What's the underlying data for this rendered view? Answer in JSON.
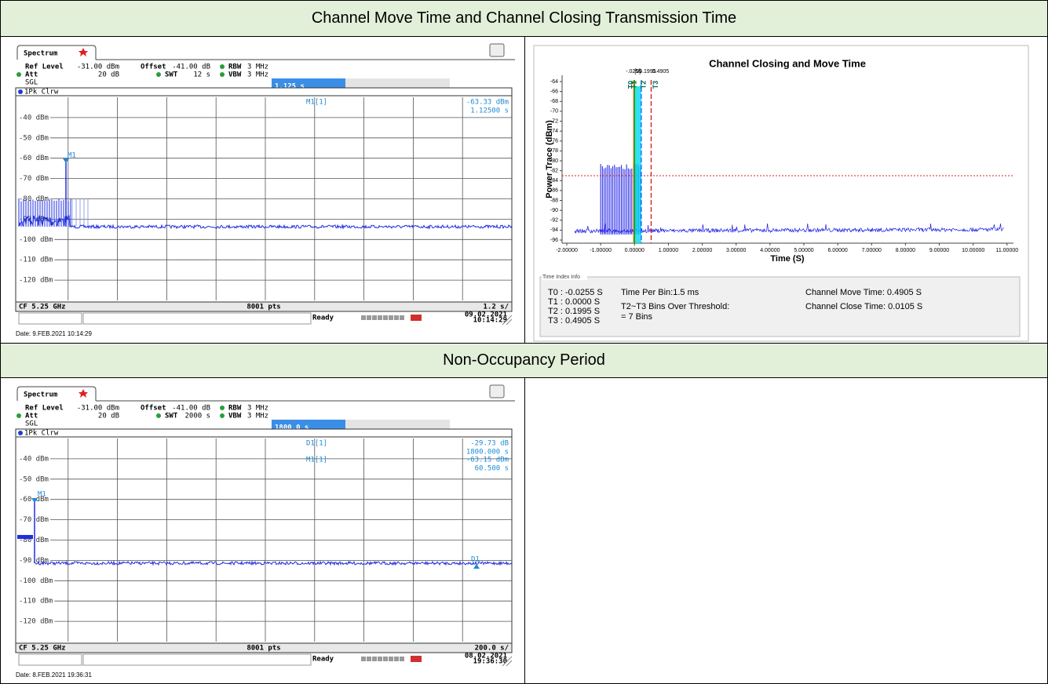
{
  "sections": [
    {
      "title": "Channel Move Time and Channel Closing Transmission Time"
    },
    {
      "title": "Non-Occupancy Period"
    }
  ],
  "analyzer1": {
    "tab": "Spectrum",
    "settings": [
      [
        "Ref Level",
        "-31.00 dBm",
        "Offset",
        "-41.00 dB",
        "RBW",
        "3 MHz"
      ],
      [
        "Att",
        "20 dB",
        "SWT",
        "12 s",
        "VBW",
        "3 MHz"
      ]
    ],
    "mode": "SGL",
    "marker_readout": "1.125 s",
    "trace": "1Pk Clrw",
    "markers": [
      {
        "name": "M1[1]",
        "value": "-63.33 dBm",
        "position": "1.12500 s"
      }
    ],
    "marker_tags": [
      "M1"
    ],
    "y_labels": [
      "-40 dBm",
      "-50 dBm",
      "-60 dBm",
      "-70 dBm",
      "-80 dBm",
      "-90 dBm",
      "-100 dBm",
      "-110 dBm",
      "-120 dBm"
    ],
    "footer": {
      "center": "CF 5.25 GHz",
      "points": "8001 pts",
      "span": "1.2 s/"
    },
    "status": {
      "state": "Ready",
      "date": "09.02.2021",
      "time": "10:14:29"
    },
    "caption": "Date: 9.FEB.2021 10:14:29"
  },
  "analyzer2": {
    "tab": "Spectrum",
    "settings": [
      [
        "Ref Level",
        "-31.00 dBm",
        "Offset",
        "-41.00 dB",
        "RBW",
        "3 MHz"
      ],
      [
        "Att",
        "20 dB",
        "SWT",
        "2000 s",
        "VBW",
        "3 MHz"
      ]
    ],
    "mode": "SGL",
    "marker_readout": "1800.0 s",
    "trace": "1Pk Clrw",
    "markers": [
      {
        "name": "D1[1]",
        "value": "-29.73 dB",
        "position": "1800.000 s"
      },
      {
        "name": "M1[1]",
        "value": "-63.15 dBm",
        "position": "60.500 s"
      }
    ],
    "marker_tags": [
      "M1",
      "D1"
    ],
    "y_labels": [
      "-40 dBm",
      "-50 dBm",
      "-60 dBm",
      "-70 dBm",
      "-80 dBm",
      "-90 dBm",
      "-100 dBm",
      "-110 dBm",
      "-120 dBm"
    ],
    "footer": {
      "center": "CF 5.25 GHz",
      "points": "8001 pts",
      "span": "200.0 s/"
    },
    "status": {
      "state": "Ready",
      "date": "08.02.2021",
      "time": "19:36:30"
    },
    "caption": "Date: 8.FEB.2021 19:36:31"
  },
  "chart": {
    "type": "line",
    "title": "Channel Closing and Move Time",
    "y_label": "Power Trace (dBm)",
    "x_label": "Time (S)",
    "xlim": [
      -2.14,
      11.19
    ],
    "ylim": [
      -96.63,
      -62.73
    ],
    "xticks": [
      {
        "value": -2,
        "label": "-2.00000"
      },
      {
        "value": -1,
        "label": "-1.00000"
      },
      {
        "value": 0,
        "label": "0.00000"
      },
      {
        "value": 1,
        "label": "1.00000"
      },
      {
        "value": 2,
        "label": "2.00000"
      },
      {
        "value": 3,
        "label": "3.00000"
      },
      {
        "value": 4,
        "label": "4.00000"
      },
      {
        "value": 5,
        "label": "5.00000"
      },
      {
        "value": 6,
        "label": "6.00000"
      },
      {
        "value": 7,
        "label": "7.00000"
      },
      {
        "value": 8,
        "label": "8.00000"
      },
      {
        "value": 9,
        "label": "9.00000"
      },
      {
        "value": 10,
        "label": "10.00000"
      },
      {
        "value": 11,
        "label": "11.00000"
      }
    ],
    "yticks": [
      -64,
      -66,
      -68,
      -70,
      -72,
      -74,
      -76,
      -78,
      -80,
      -82,
      -84,
      -86,
      -88,
      -90,
      -92,
      -94,
      -96
    ],
    "threshold": -83,
    "markers": [
      {
        "name": "T0",
        "value": -0.0255,
        "label": "-.0255"
      },
      {
        "name": "T1",
        "value": 0,
        "label": "[0]"
      },
      {
        "name": "T2",
        "value": 0.1995,
        "label": "0.1995"
      },
      {
        "name": "T3",
        "value": 0.4905,
        "label": "0.4905"
      }
    ],
    "info": {
      "title": "Time Index Info",
      "times": [
        "T0 : -0.0255  S",
        "T1 : 0.0000  S",
        "T2 : 0.1995  S",
        "T3 : 0.4905  S"
      ],
      "bin": "Time Per Bin:1.5 ms",
      "bins_over": "T2~T3 Bins Over Threshold:",
      "bins_count": "= 7 Bins",
      "move": "Channel Move Time: 0.4905  S",
      "close": "Channel Close Time: 0.0105  S"
    }
  }
}
